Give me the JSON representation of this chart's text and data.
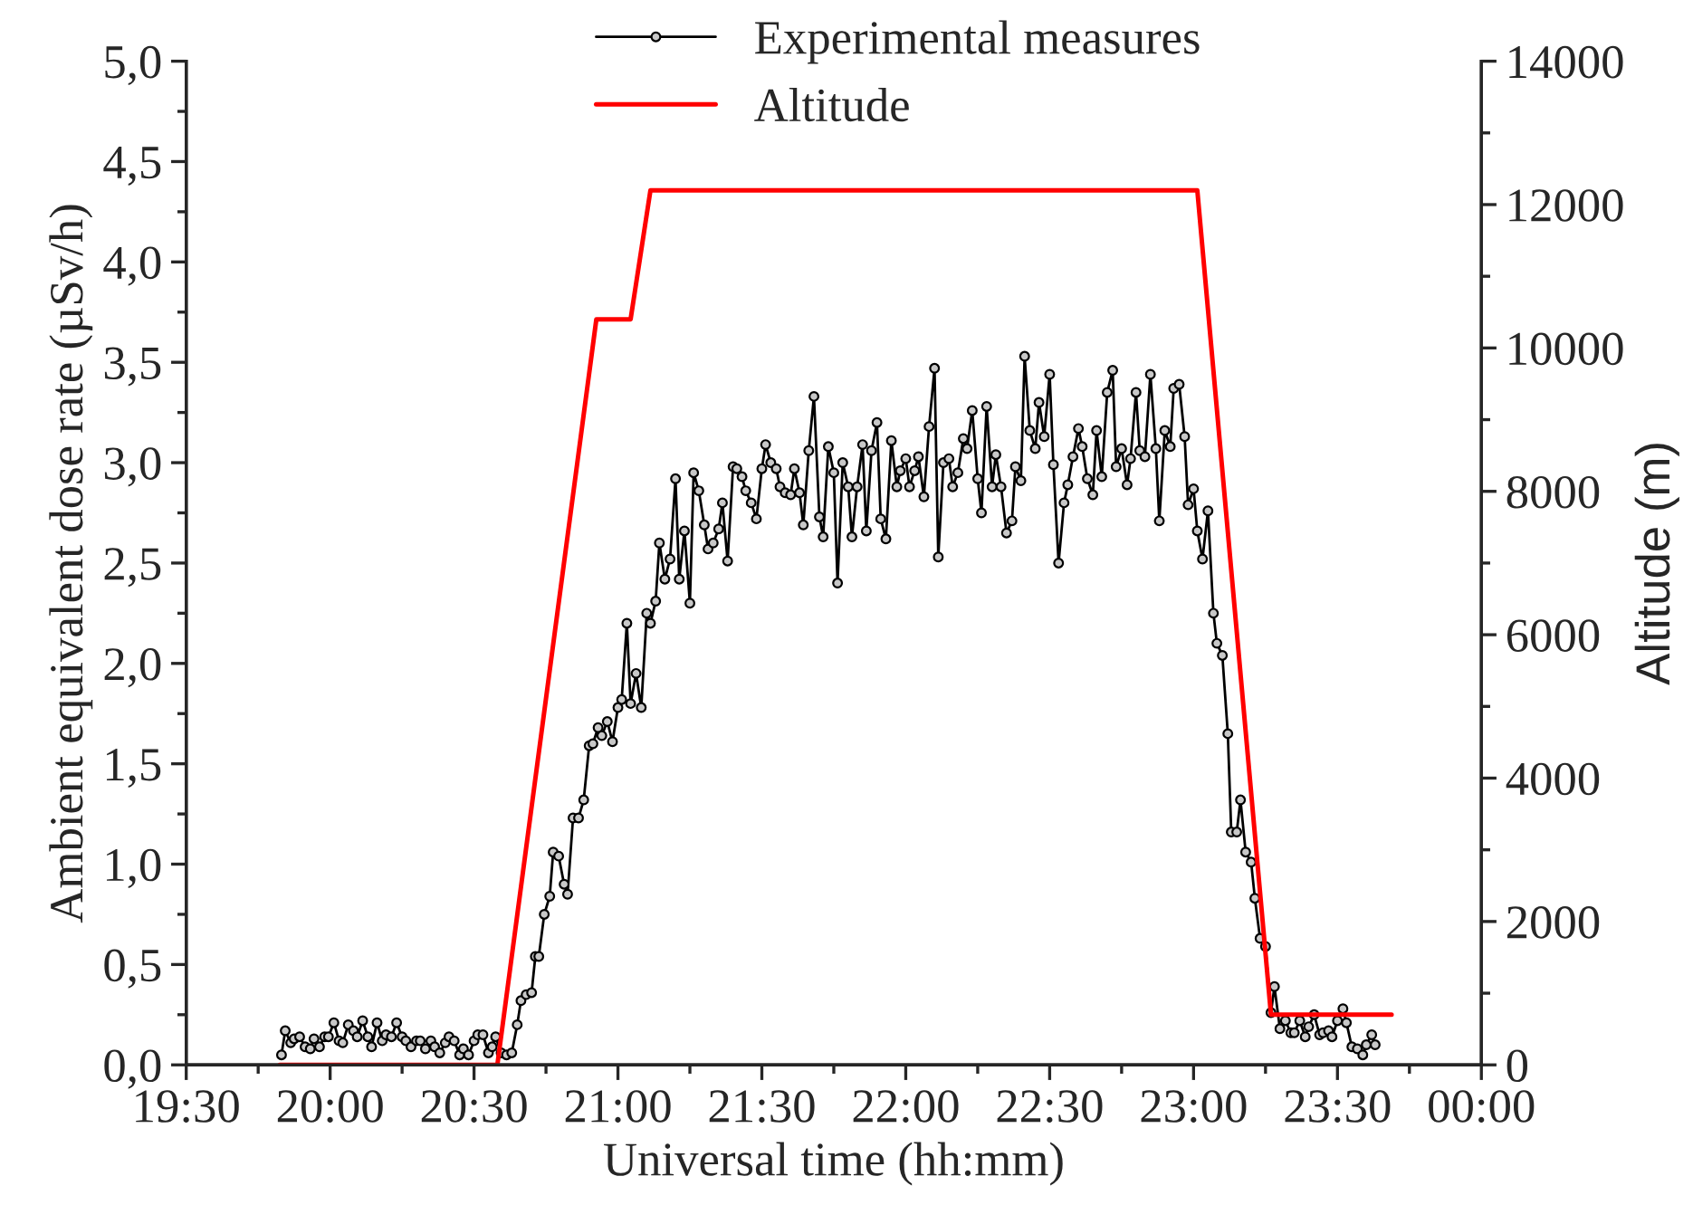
{
  "chart_data": {
    "type": "line",
    "xlabel": "Universal time (hh:mm)",
    "ylabel": "Ambient equivalent dose rate (µSv/h)",
    "y2label": "Altitude (m)",
    "xlim": [
      19.5,
      24
    ],
    "xticks": [
      {
        "value": 19.5,
        "label": "19:30"
      },
      {
        "value": 20,
        "label": "20:00"
      },
      {
        "value": 20.5,
        "label": "20:30"
      },
      {
        "value": 21,
        "label": "21:00"
      },
      {
        "value": 21.5,
        "label": "21:30"
      },
      {
        "value": 22,
        "label": "22:00"
      },
      {
        "value": 22.5,
        "label": "22:30"
      },
      {
        "value": 23,
        "label": "23:00"
      },
      {
        "value": 23.5,
        "label": "23:30"
      },
      {
        "value": 24,
        "label": "00:00"
      }
    ],
    "ylim": [
      0,
      5
    ],
    "yticks": [
      {
        "value": 0,
        "label": "0,0"
      },
      {
        "value": 0.5,
        "label": "0,5"
      },
      {
        "value": 1,
        "label": "1,0"
      },
      {
        "value": 1.5,
        "label": "1,5"
      },
      {
        "value": 2,
        "label": "2,0"
      },
      {
        "value": 2.5,
        "label": "2,5"
      },
      {
        "value": 3,
        "label": "3,0"
      },
      {
        "value": 3.5,
        "label": "3,5"
      },
      {
        "value": 4,
        "label": "4,0"
      },
      {
        "value": 4.5,
        "label": "4,5"
      },
      {
        "value": 5,
        "label": "5,0"
      }
    ],
    "y2lim": [
      0,
      14000
    ],
    "y2ticks": [
      0,
      2000,
      4000,
      6000,
      8000,
      10000,
      12000,
      14000
    ],
    "grid": false,
    "legend": "top",
    "series": [
      {
        "name": "Experimental measures",
        "color": "#000000",
        "marker": "circle",
        "x": [
          19.831,
          19.844,
          19.863,
          19.875,
          19.894,
          19.913,
          19.931,
          19.944,
          19.963,
          19.981,
          19.994,
          20.013,
          20.031,
          20.044,
          20.063,
          20.081,
          20.094,
          20.113,
          20.131,
          20.144,
          20.163,
          20.181,
          20.194,
          20.213,
          20.231,
          20.25,
          20.263,
          20.281,
          20.3,
          20.313,
          20.331,
          20.35,
          20.363,
          20.381,
          20.4,
          20.413,
          20.431,
          20.45,
          20.463,
          20.481,
          20.5,
          20.513,
          20.531,
          20.55,
          20.563,
          20.575,
          20.594,
          20.613,
          20.631,
          20.65,
          20.663,
          20.681,
          20.7,
          20.713,
          20.725,
          20.744,
          20.763,
          20.775,
          20.794,
          20.813,
          20.825,
          20.844,
          20.863,
          20.881,
          20.9,
          20.913,
          20.931,
          20.944,
          20.963,
          20.981,
          21.0,
          21.013,
          21.031,
          21.044,
          21.063,
          21.081,
          21.1,
          21.113,
          21.131,
          21.144,
          21.163,
          21.181,
          21.2,
          21.213,
          21.231,
          21.25,
          21.263,
          21.281,
          21.3,
          21.313,
          21.331,
          21.35,
          21.363,
          21.381,
          21.4,
          21.413,
          21.431,
          21.444,
          21.463,
          21.481,
          21.5,
          21.513,
          21.531,
          21.55,
          21.563,
          21.581,
          21.6,
          21.613,
          21.631,
          21.644,
          21.663,
          21.681,
          21.7,
          21.713,
          21.731,
          21.75,
          21.763,
          21.781,
          21.8,
          21.813,
          21.831,
          21.85,
          21.863,
          21.881,
          21.9,
          21.913,
          21.931,
          21.95,
          21.969,
          21.981,
          22.0,
          22.013,
          22.031,
          22.044,
          22.063,
          22.081,
          22.1,
          22.113,
          22.131,
          22.15,
          22.163,
          22.181,
          22.2,
          22.213,
          22.231,
          22.25,
          22.263,
          22.281,
          22.3,
          22.313,
          22.331,
          22.35,
          22.369,
          22.381,
          22.4,
          22.413,
          22.431,
          22.45,
          22.463,
          22.481,
          22.5,
          22.513,
          22.531,
          22.55,
          22.563,
          22.581,
          22.6,
          22.613,
          22.631,
          22.65,
          22.663,
          22.681,
          22.7,
          22.719,
          22.731,
          22.75,
          22.769,
          22.781,
          22.8,
          22.813,
          22.831,
          22.85,
          22.869,
          22.881,
          22.9,
          22.919,
          22.931,
          22.95,
          22.969,
          22.981,
          23.0,
          23.013,
          23.031,
          23.05,
          23.069,
          23.081,
          23.1,
          23.119,
          23.131,
          23.15,
          23.163,
          23.181,
          23.2,
          23.213,
          23.231,
          23.25,
          23.269,
          23.281,
          23.3,
          23.319,
          23.338,
          23.35,
          23.369,
          23.388,
          23.4,
          23.419,
          23.438,
          23.45,
          23.469,
          23.481,
          23.5,
          23.519,
          23.531,
          23.55,
          23.569,
          23.588,
          23.6,
          23.619,
          23.631
        ],
        "values": [
          0.05,
          0.17,
          0.11,
          0.13,
          0.14,
          0.09,
          0.08,
          0.13,
          0.09,
          0.14,
          0.14,
          0.21,
          0.12,
          0.11,
          0.2,
          0.17,
          0.14,
          0.22,
          0.14,
          0.09,
          0.21,
          0.12,
          0.15,
          0.14,
          0.21,
          0.14,
          0.12,
          0.09,
          0.12,
          0.12,
          0.08,
          0.12,
          0.09,
          0.06,
          0.11,
          0.14,
          0.12,
          0.05,
          0.08,
          0.05,
          0.12,
          0.15,
          0.15,
          0.06,
          0.09,
          0.14,
          0.06,
          0.05,
          0.06,
          0.2,
          0.32,
          0.35,
          0.36,
          0.54,
          0.54,
          0.75,
          0.84,
          1.06,
          1.04,
          0.9,
          0.85,
          1.23,
          1.23,
          1.32,
          1.59,
          1.6,
          1.68,
          1.64,
          1.71,
          1.61,
          1.78,
          1.82,
          2.2,
          1.8,
          1.95,
          1.78,
          2.25,
          2.2,
          2.31,
          2.6,
          2.42,
          2.52,
          2.92,
          2.42,
          2.66,
          2.3,
          2.95,
          2.86,
          2.69,
          2.57,
          2.6,
          2.67,
          2.8,
          2.51,
          2.98,
          2.97,
          2.93,
          2.86,
          2.8,
          2.72,
          2.97,
          3.09,
          3.0,
          2.97,
          2.88,
          2.85,
          2.84,
          2.97,
          2.85,
          2.69,
          3.06,
          3.33,
          2.73,
          2.63,
          3.08,
          2.95,
          2.4,
          3.0,
          2.88,
          2.63,
          2.88,
          3.09,
          2.66,
          3.06,
          3.2,
          2.72,
          2.62,
          3.11,
          2.88,
          2.96,
          3.02,
          2.88,
          2.96,
          3.03,
          2.83,
          3.18,
          3.47,
          2.53,
          3.0,
          3.02,
          2.88,
          2.95,
          3.12,
          3.07,
          3.26,
          2.92,
          2.75,
          3.28,
          2.88,
          3.04,
          2.88,
          2.65,
          2.71,
          2.98,
          2.91,
          3.53,
          3.16,
          3.07,
          3.3,
          3.13,
          3.44,
          2.99,
          2.5,
          2.8,
          2.89,
          3.03,
          3.17,
          3.08,
          2.92,
          2.84,
          3.16,
          2.93,
          3.35,
          3.46,
          2.98,
          3.07,
          2.89,
          3.02,
          3.35,
          3.06,
          3.03,
          3.44,
          3.07,
          2.71,
          3.16,
          3.08,
          3.37,
          3.39,
          3.13,
          2.79,
          2.87,
          2.66,
          2.52,
          2.76,
          2.25,
          2.1,
          2.04,
          1.65,
          1.16,
          1.16,
          1.32,
          1.06,
          1.01,
          0.83,
          0.63,
          0.59,
          0.26,
          0.39,
          0.18,
          0.22,
          0.16,
          0.16,
          0.22,
          0.14,
          0.19,
          0.25,
          0.15,
          0.16,
          0.17,
          0.14,
          0.22,
          0.28,
          0.21,
          0.09,
          0.08,
          0.05,
          0.1,
          0.15,
          0.1
        ]
      },
      {
        "name": "Altitude",
        "color": "#ff0000",
        "axis": "y2",
        "marker": "none",
        "x": [
          19.825,
          20.581,
          20.925,
          21.044,
          21.113,
          23.013,
          23.269,
          23.688
        ],
        "values": [
          0,
          0,
          10400,
          10400,
          12200,
          12200,
          700,
          700
        ]
      }
    ]
  }
}
